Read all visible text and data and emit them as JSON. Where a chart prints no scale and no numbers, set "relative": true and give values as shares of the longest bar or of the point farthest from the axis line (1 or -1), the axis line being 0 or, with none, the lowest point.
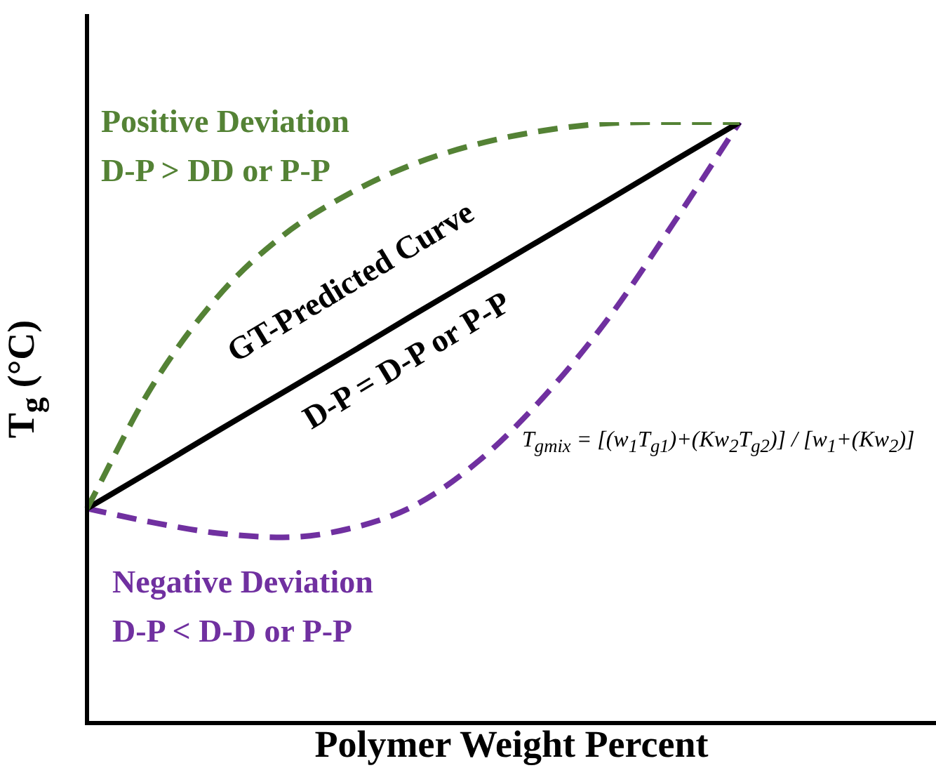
{
  "chart_data": {
    "type": "line",
    "relative": true,
    "xlabel": "Polymer Weight Percent",
    "ylabel": "T$_{g}$ (°C)",
    "categories": [
      null,
      null,
      null,
      null,
      null,
      null,
      null,
      null,
      null,
      null,
      null
    ],
    "marker": "none",
    "legend": false,
    "series": [
      {
        "name": "Positive Deviation",
        "color": "#548235",
        "line_style": "dashed",
        "values": [
          0.357,
          0.561,
          0.709,
          0.811,
          0.88,
          0.93,
          0.964,
          0.986,
          0.998,
          1.0,
          1.0
        ]
      },
      {
        "name": "GT-Predicted Curve",
        "color": "#000000",
        "line_style": "solid",
        "values": [
          0.357,
          0.421,
          0.486,
          0.55,
          0.614,
          0.679,
          0.743,
          0.807,
          0.871,
          0.936,
          1.0
        ]
      },
      {
        "name": "Negative Deviation",
        "color": "#7030a0",
        "line_style": "dashed",
        "values": [
          0.357,
          0.334,
          0.316,
          0.309,
          0.323,
          0.361,
          0.436,
          0.543,
          0.675,
          0.834,
          1.0
        ]
      }
    ],
    "annotations": [
      "D-P > DD or P-P",
      "D-P = D-P or P-P",
      "D-P < D-D or P-P",
      "T$_{gmix}$ = [(w$_{1}$T$_{g1}$)+(Kw$_{2}$T$_{g2}$)] / [w$_{1}$+(Kw$_{2}$)]"
    ]
  }
}
